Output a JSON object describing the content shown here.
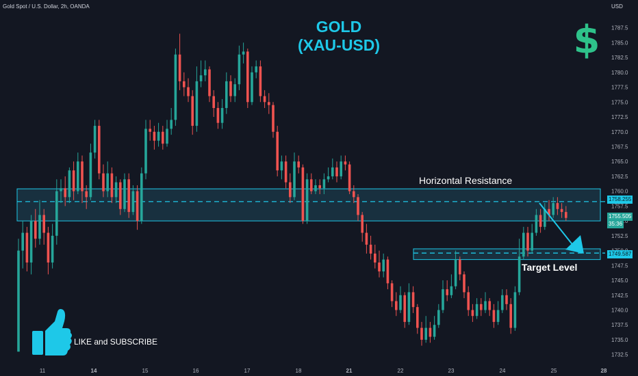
{
  "header": {
    "symbol_line": "Gold Spot / U.S. Dollar, 2h, OANDA",
    "currency": "USD"
  },
  "title": {
    "line1": "GOLD",
    "line2": "(XAU-USD)"
  },
  "icons": {
    "dollar": "dollar-sign-icon",
    "dollar_glyph": "$",
    "like": "thumbs-up-icon"
  },
  "annotations": {
    "resistance_label": "Horizontal Resistance",
    "target_label": "Target Level",
    "like_text": "LIKE and SUBSCRIBE"
  },
  "colors": {
    "background": "#131722",
    "bull": "#26a69a",
    "bear": "#ef5350",
    "accent": "#1ec8e8",
    "zone_fill": "#1b3a4a",
    "price_tag": "#26a69a",
    "level_tag": "#1ec8e8"
  },
  "price_tags": {
    "current_price": "1755.505",
    "countdown": "35:36",
    "resistance_level": "1758.255",
    "target_level": "1749.587"
  },
  "chart_data": {
    "type": "candlestick",
    "title": "GOLD (XAU-USD)",
    "ylabel": "USD",
    "ylim": [
      1731.2,
      1789.3
    ],
    "y_ticks": [
      1732.5,
      1735.0,
      1737.5,
      1740.0,
      1742.5,
      1745.0,
      1747.5,
      1750.0,
      1752.5,
      1755.0,
      1757.5,
      1760.0,
      1762.5,
      1765.0,
      1767.5,
      1770.0,
      1772.5,
      1775.0,
      1777.5,
      1780.0,
      1782.5,
      1785.0,
      1787.5
    ],
    "x_ticks": [
      "11",
      "14",
      "15",
      "16",
      "17",
      "18",
      "21",
      "22",
      "23",
      "24",
      "25",
      "28"
    ],
    "zones": [
      {
        "name": "Horizontal Resistance",
        "low": 1755.0,
        "high": 1760.4,
        "level": 1758.255
      },
      {
        "name": "Target Level",
        "low": 1748.5,
        "high": 1750.3,
        "level": 1749.587
      }
    ],
    "candles": [
      [
        1733.0,
        1750.0,
        1733.0,
        1752.0
      ],
      [
        1750.0,
        1753.0,
        1747.0,
        1755.0
      ],
      [
        1753.0,
        1748.0,
        1746.5,
        1754.0
      ],
      [
        1748.0,
        1755.0,
        1746.0,
        1756.0
      ],
      [
        1755.0,
        1752.0,
        1750.5,
        1757.0
      ],
      [
        1752.0,
        1756.0,
        1751.0,
        1758.5
      ],
      [
        1756.0,
        1753.0,
        1751.0,
        1757.0
      ],
      [
        1753.0,
        1748.0,
        1746.0,
        1754.0
      ],
      [
        1748.0,
        1752.5,
        1747.0,
        1754.5
      ],
      [
        1752.5,
        1760.0,
        1751.0,
        1762.0
      ],
      [
        1760.0,
        1760.5,
        1758.0,
        1762.0
      ],
      [
        1760.5,
        1759.0,
        1757.5,
        1762.5
      ],
      [
        1759.0,
        1763.5,
        1758.0,
        1764.0
      ],
      [
        1763.5,
        1760.0,
        1758.5,
        1765.0
      ],
      [
        1760.0,
        1765.0,
        1759.5,
        1766.5
      ],
      [
        1765.0,
        1760.0,
        1758.0,
        1766.0
      ],
      [
        1760.0,
        1759.0,
        1757.0,
        1761.0
      ],
      [
        1759.0,
        1766.5,
        1758.5,
        1768.0
      ],
      [
        1766.5,
        1771.0,
        1765.5,
        1772.0
      ],
      [
        1771.0,
        1763.0,
        1762.0,
        1772.0
      ],
      [
        1763.0,
        1760.0,
        1759.0,
        1764.5
      ],
      [
        1760.0,
        1763.0,
        1759.0,
        1765.0
      ],
      [
        1763.0,
        1759.0,
        1758.0,
        1764.0
      ],
      [
        1759.0,
        1761.5,
        1758.0,
        1762.5
      ],
      [
        1761.5,
        1757.0,
        1756.0,
        1762.0
      ],
      [
        1757.0,
        1762.0,
        1756.5,
        1763.0
      ],
      [
        1762.0,
        1756.5,
        1755.5,
        1763.0
      ],
      [
        1756.5,
        1760.0,
        1756.0,
        1761.0
      ],
      [
        1760.0,
        1755.0,
        1753.5,
        1761.0
      ],
      [
        1755.0,
        1763.0,
        1754.5,
        1764.0
      ],
      [
        1763.0,
        1770.5,
        1762.0,
        1772.0
      ],
      [
        1770.5,
        1770.0,
        1768.5,
        1772.0
      ],
      [
        1770.0,
        1768.5,
        1767.0,
        1771.0
      ],
      [
        1768.5,
        1770.0,
        1767.5,
        1771.5
      ],
      [
        1770.0,
        1768.0,
        1767.0,
        1771.0
      ],
      [
        1768.0,
        1770.5,
        1767.5,
        1772.0
      ],
      [
        1770.5,
        1772.0,
        1769.5,
        1774.0
      ],
      [
        1772.0,
        1783.0,
        1771.0,
        1784.0
      ],
      [
        1783.0,
        1778.5,
        1777.0,
        1786.5
      ],
      [
        1778.5,
        1777.5,
        1776.0,
        1780.0
      ],
      [
        1777.5,
        1776.0,
        1775.0,
        1779.0
      ],
      [
        1776.0,
        1771.0,
        1769.5,
        1777.0
      ],
      [
        1771.0,
        1778.5,
        1770.0,
        1781.0
      ],
      [
        1778.5,
        1779.5,
        1777.5,
        1782.0
      ],
      [
        1779.5,
        1780.5,
        1778.5,
        1782.0
      ],
      [
        1780.5,
        1776.0,
        1775.0,
        1781.0
      ],
      [
        1776.0,
        1774.0,
        1772.5,
        1777.0
      ],
      [
        1774.0,
        1771.5,
        1770.5,
        1775.0
      ],
      [
        1771.5,
        1774.0,
        1770.5,
        1775.5
      ],
      [
        1774.0,
        1778.5,
        1773.0,
        1780.0
      ],
      [
        1778.5,
        1776.0,
        1775.0,
        1779.5
      ],
      [
        1776.0,
        1778.0,
        1775.0,
        1779.0
      ],
      [
        1778.0,
        1783.0,
        1777.0,
        1784.5
      ],
      [
        1783.0,
        1783.5,
        1781.5,
        1785.0
      ],
      [
        1783.5,
        1775.0,
        1774.0,
        1784.0
      ],
      [
        1775.0,
        1780.0,
        1774.5,
        1781.0
      ],
      [
        1780.0,
        1781.0,
        1779.0,
        1782.0
      ],
      [
        1781.0,
        1776.0,
        1775.0,
        1782.0
      ],
      [
        1776.0,
        1775.0,
        1774.0,
        1777.0
      ],
      [
        1775.0,
        1774.5,
        1773.0,
        1776.5
      ],
      [
        1774.5,
        1770.0,
        1769.0,
        1775.0
      ],
      [
        1770.0,
        1763.5,
        1762.5,
        1771.0
      ],
      [
        1763.5,
        1765.0,
        1762.0,
        1766.0
      ],
      [
        1765.0,
        1761.5,
        1760.5,
        1766.0
      ],
      [
        1761.5,
        1759.0,
        1758.0,
        1763.0
      ],
      [
        1759.0,
        1765.0,
        1758.5,
        1766.5
      ],
      [
        1765.0,
        1764.0,
        1763.0,
        1766.0
      ],
      [
        1764.0,
        1755.0,
        1754.5,
        1764.5
      ],
      [
        1755.0,
        1762.0,
        1754.5,
        1763.0
      ],
      [
        1762.0,
        1760.0,
        1759.5,
        1763.0
      ],
      [
        1760.0,
        1761.0,
        1759.5,
        1762.0
      ],
      [
        1761.0,
        1760.5,
        1759.5,
        1762.0
      ],
      [
        1760.5,
        1762.0,
        1759.5,
        1763.0
      ],
      [
        1762.0,
        1762.5,
        1761.5,
        1764.0
      ],
      [
        1762.5,
        1764.0,
        1762.0,
        1765.5
      ],
      [
        1764.0,
        1762.5,
        1761.5,
        1765.0
      ],
      [
        1762.5,
        1765.0,
        1762.0,
        1766.0
      ],
      [
        1765.0,
        1764.5,
        1763.5,
        1766.0
      ],
      [
        1764.5,
        1760.0,
        1759.5,
        1765.0
      ],
      [
        1760.0,
        1759.0,
        1758.0,
        1761.0
      ],
      [
        1759.0,
        1756.0,
        1755.0,
        1759.5
      ],
      [
        1756.0,
        1753.0,
        1751.5,
        1756.5
      ],
      [
        1753.0,
        1751.0,
        1749.5,
        1754.5
      ],
      [
        1751.0,
        1749.5,
        1748.5,
        1752.5
      ],
      [
        1749.5,
        1748.0,
        1747.0,
        1751.0
      ],
      [
        1748.0,
        1746.5,
        1745.5,
        1750.0
      ],
      [
        1746.5,
        1748.5,
        1745.5,
        1749.5
      ],
      [
        1748.5,
        1744.5,
        1743.5,
        1749.0
      ],
      [
        1744.5,
        1741.5,
        1740.5,
        1745.0
      ],
      [
        1741.5,
        1740.0,
        1739.0,
        1743.0
      ],
      [
        1740.0,
        1742.5,
        1739.5,
        1744.0
      ],
      [
        1742.5,
        1738.0,
        1737.0,
        1743.0
      ],
      [
        1738.0,
        1743.0,
        1737.5,
        1744.5
      ],
      [
        1743.0,
        1740.5,
        1739.5,
        1744.0
      ],
      [
        1740.5,
        1737.0,
        1736.0,
        1741.0
      ],
      [
        1737.0,
        1735.0,
        1734.0,
        1738.0
      ],
      [
        1735.0,
        1737.0,
        1734.5,
        1739.0
      ],
      [
        1737.0,
        1735.5,
        1734.5,
        1738.0
      ],
      [
        1735.5,
        1737.5,
        1735.0,
        1739.0
      ],
      [
        1737.5,
        1740.0,
        1737.0,
        1741.0
      ],
      [
        1740.0,
        1743.5,
        1739.5,
        1745.0
      ],
      [
        1743.5,
        1742.5,
        1741.5,
        1745.0
      ],
      [
        1742.5,
        1744.0,
        1742.0,
        1746.0
      ],
      [
        1744.0,
        1748.5,
        1743.5,
        1750.0
      ],
      [
        1748.5,
        1746.0,
        1745.0,
        1749.0
      ],
      [
        1746.0,
        1743.0,
        1742.0,
        1746.5
      ],
      [
        1743.0,
        1740.0,
        1739.0,
        1744.0
      ],
      [
        1740.0,
        1739.0,
        1738.0,
        1741.0
      ],
      [
        1739.0,
        1741.0,
        1738.5,
        1742.0
      ],
      [
        1741.0,
        1740.0,
        1739.0,
        1742.0
      ],
      [
        1740.0,
        1741.5,
        1739.5,
        1743.0
      ],
      [
        1741.5,
        1740.0,
        1739.0,
        1742.0
      ],
      [
        1740.0,
        1738.0,
        1737.0,
        1741.0
      ],
      [
        1738.0,
        1740.0,
        1737.5,
        1741.5
      ],
      [
        1740.0,
        1742.5,
        1739.5,
        1743.5
      ],
      [
        1742.5,
        1741.0,
        1740.0,
        1743.5
      ],
      [
        1741.0,
        1737.0,
        1736.0,
        1742.0
      ],
      [
        1737.0,
        1743.0,
        1736.5,
        1744.0
      ],
      [
        1743.0,
        1749.0,
        1742.5,
        1752.0
      ],
      [
        1749.0,
        1753.0,
        1748.5,
        1754.0
      ],
      [
        1753.0,
        1750.0,
        1749.0,
        1754.0
      ],
      [
        1750.0,
        1753.0,
        1749.5,
        1754.5
      ],
      [
        1753.0,
        1756.0,
        1752.5,
        1757.0
      ],
      [
        1756.0,
        1754.0,
        1753.0,
        1757.0
      ],
      [
        1754.0,
        1757.0,
        1753.5,
        1758.0
      ],
      [
        1757.0,
        1756.0,
        1755.0,
        1758.5
      ],
      [
        1756.0,
        1758.0,
        1755.5,
        1759.0
      ],
      [
        1758.0,
        1757.0,
        1756.0,
        1759.0
      ],
      [
        1757.0,
        1756.5,
        1755.5,
        1758.0
      ],
      [
        1756.5,
        1755.5,
        1755.0,
        1757.5
      ]
    ]
  }
}
